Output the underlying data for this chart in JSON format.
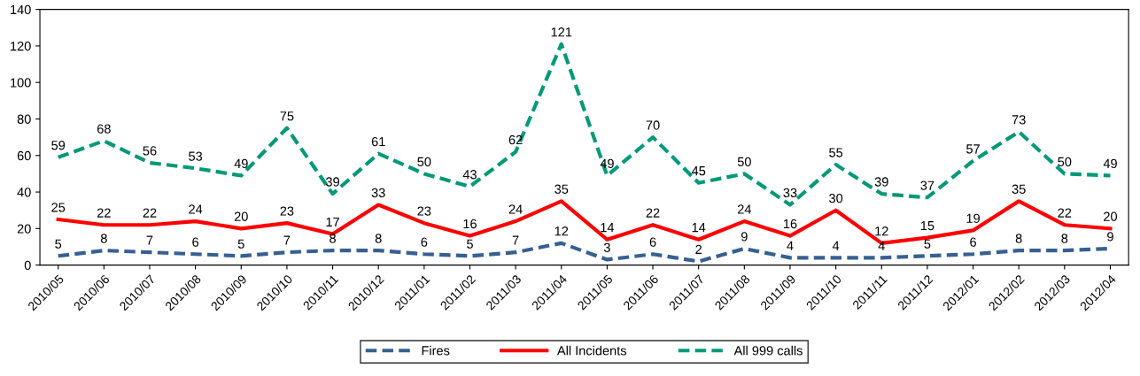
{
  "chart_data": {
    "type": "line",
    "categories": [
      "2010/05",
      "2010/06",
      "2010/07",
      "2010/08",
      "2010/09",
      "2010/10",
      "2010/11",
      "2010/12",
      "2011/01",
      "2011/02",
      "2011/03",
      "2011/04",
      "2011/05",
      "2011/06",
      "2011/07",
      "2011/08",
      "2011/09",
      "2011/10",
      "2011/11",
      "2011/12",
      "2012/01",
      "2012/02",
      "2012/03",
      "2012/04"
    ],
    "series": [
      {
        "name": "Fires",
        "color": "#376092",
        "line_style": "dashed",
        "values": [
          5,
          8,
          7,
          6,
          5,
          7,
          8,
          8,
          6,
          5,
          7,
          12,
          3,
          6,
          2,
          9,
          4,
          4,
          4,
          5,
          6,
          8,
          8,
          9
        ]
      },
      {
        "name": "All Incidents",
        "color": "#ff0000",
        "line_style": "solid",
        "values": [
          25,
          22,
          22,
          24,
          20,
          23,
          17,
          33,
          23,
          16,
          24,
          35,
          14,
          22,
          14,
          24,
          16,
          30,
          12,
          15,
          19,
          35,
          22,
          20
        ]
      },
      {
        "name": "All 999 calls",
        "color": "#009977",
        "line_style": "dashed",
        "values": [
          59,
          68,
          56,
          53,
          49,
          75,
          39,
          61,
          50,
          43,
          62,
          121,
          49,
          70,
          45,
          50,
          33,
          55,
          39,
          37,
          57,
          73,
          50,
          49
        ]
      }
    ],
    "ylim": [
      0,
      140
    ],
    "yticks": [
      0,
      20,
      40,
      60,
      80,
      100,
      120,
      140
    ],
    "data_labels": true,
    "grid": false,
    "legend": "bottom",
    "marker": "none"
  }
}
